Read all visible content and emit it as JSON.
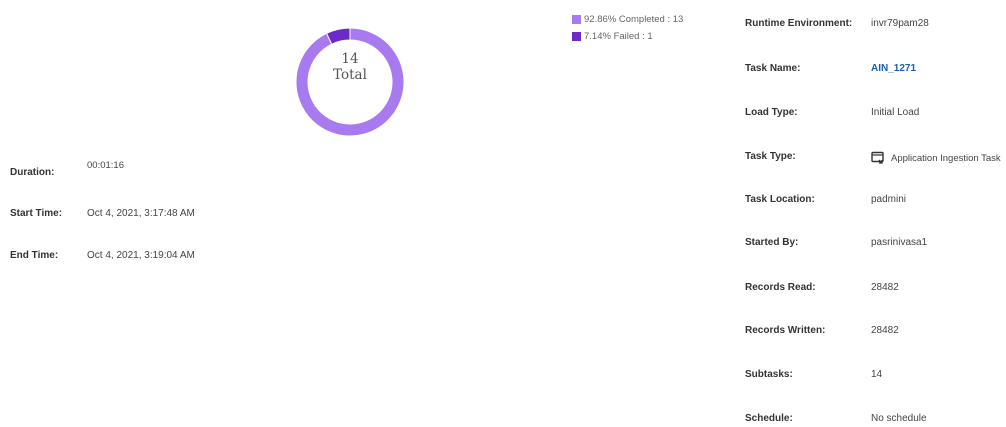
{
  "donut": {
    "total_number": "14",
    "total_label": "Total",
    "segments": [
      {
        "value": 13,
        "color": "#a87af0"
      },
      {
        "value": 1,
        "color": "#6a2bc8"
      }
    ]
  },
  "legend": {
    "items": [
      {
        "label": "92.86% Completed : 13",
        "color": "#a87af0"
      },
      {
        "label": "7.14% Failed : 1",
        "color": "#6a2bc8"
      }
    ]
  },
  "timing": {
    "duration_label": "Duration:",
    "duration_value": "00:01:16",
    "start_label": "Start Time:",
    "start_value": "Oct 4, 2021, 3:17:48 AM",
    "end_label": "End Time:",
    "end_value": "Oct 4, 2021, 3:19:04 AM"
  },
  "details": {
    "runtime_label": "Runtime Environment:",
    "runtime_value": "invr79pam28",
    "task_name_label": "Task Name:",
    "task_name_value": "AIN_1271",
    "load_type_label": "Load Type:",
    "load_type_value": "Initial Load",
    "task_type_label": "Task Type:",
    "task_type_value": "Application Ingestion Task",
    "task_type_icon": "application-ingestion-icon",
    "location_label": "Task Location:",
    "location_value": "padmini",
    "started_by_label": "Started By:",
    "started_by_value": "pasrinivasa1",
    "records_read_label": "Records Read:",
    "records_read_value": "28482",
    "records_written_label": "Records Written:",
    "records_written_value": "28482",
    "subtasks_label": "Subtasks:",
    "subtasks_value": "14",
    "schedule_label": "Schedule:",
    "schedule_value": "No schedule"
  }
}
